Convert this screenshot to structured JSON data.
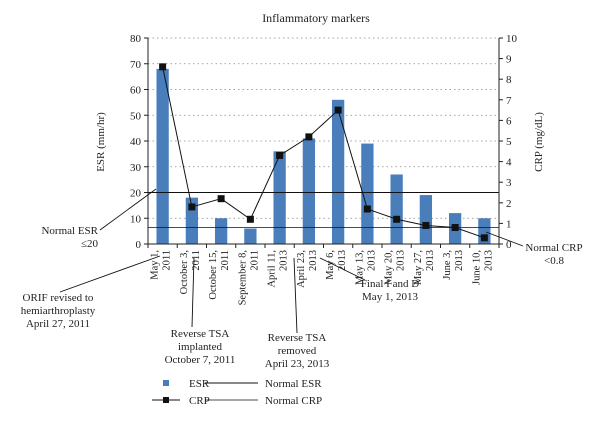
{
  "chart_data": {
    "type": "bar",
    "title": "Inflammatory markers",
    "ylabel": "ESR (mm/hr)",
    "y2label": "CRP (mg/dL)",
    "ylim": [
      0,
      80
    ],
    "y2lim": [
      0,
      10
    ],
    "y_ticks": [
      0,
      10,
      20,
      30,
      40,
      50,
      60,
      70,
      80
    ],
    "y2_ticks": [
      0,
      1,
      2,
      3,
      4,
      5,
      6,
      7,
      8,
      9,
      10
    ],
    "grid": "dotted-horizontal",
    "categories": [
      [
        "May 1,",
        "2011"
      ],
      [
        "October 3,",
        "2011"
      ],
      [
        "October 15,",
        "2011"
      ],
      [
        "September 8,",
        "2011"
      ],
      [
        "April 11,",
        "2013"
      ],
      [
        "April 23,",
        "2013"
      ],
      [
        "May 6,",
        "2013"
      ],
      [
        "May 13,",
        "2013"
      ],
      [
        "May 20,",
        "2013"
      ],
      [
        "May 27,",
        "2013"
      ],
      [
        "June 3,",
        "2013"
      ],
      [
        "June 10,",
        "2013"
      ]
    ],
    "series": [
      {
        "name": "ESR",
        "kind": "bar",
        "axis": "left",
        "color": "#4a7ebb",
        "values": [
          68,
          18,
          10,
          6,
          36,
          41,
          56,
          39,
          27,
          19,
          12,
          10
        ]
      },
      {
        "name": "CRP",
        "kind": "line",
        "axis": "right",
        "color": "#111111",
        "values": [
          8.6,
          1.8,
          2.2,
          1.2,
          4.3,
          5.2,
          6.5,
          1.7,
          1.2,
          0.9,
          0.8,
          0.3
        ]
      }
    ],
    "reference_lines": [
      {
        "name": "Normal ESR",
        "axis": "left",
        "value": 20
      },
      {
        "name": "Normal CRP",
        "axis": "right",
        "value": 0.8
      }
    ],
    "annotations": {
      "normal_esr": [
        "Normal ESR",
        "≤20"
      ],
      "normal_crp": [
        "Normal CRP",
        "<0.8"
      ],
      "orif": [
        "ORIF revised to",
        "hemiarthroplasty",
        "April 27, 2011"
      ],
      "tsa_implanted": [
        "Reverse TSA",
        "implanted",
        "October 7, 2011"
      ],
      "tsa_removed": [
        "Reverse TSA",
        "removed",
        "April 23, 2013"
      ],
      "final_id": [
        "Final I and D",
        "May 1, 2013"
      ]
    },
    "legend": {
      "position": "bottom",
      "items": [
        {
          "label": "ESR",
          "symbol": "bar"
        },
        {
          "label": "CRP",
          "symbol": "line-marker"
        },
        {
          "label": "Normal ESR",
          "symbol": "line"
        },
        {
          "label": "Normal CRP",
          "symbol": "line"
        }
      ]
    }
  }
}
